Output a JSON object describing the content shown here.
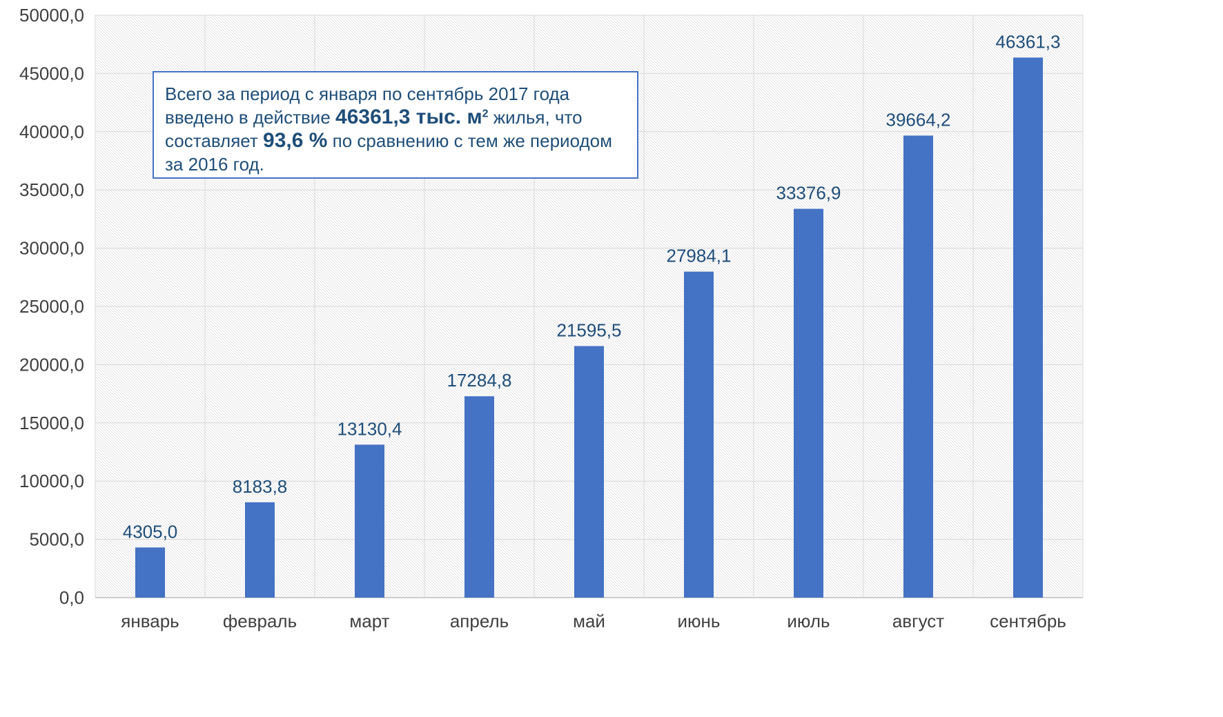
{
  "chart_data": {
    "type": "bar",
    "title": "",
    "xlabel": "",
    "ylabel": "",
    "categories": [
      "январь",
      "февраль",
      "март",
      "апрель",
      "май",
      "июнь",
      "июль",
      "август",
      "сентябрь"
    ],
    "values": [
      4305.0,
      8183.8,
      13130.4,
      17284.8,
      21595.5,
      27984.1,
      33376.9,
      39664.2,
      46361.3
    ],
    "value_labels": [
      "4305,0",
      "8183,8",
      "13130,4",
      "17284,8",
      "21595,5",
      "27984,1",
      "33376,9",
      "39664,2",
      "46361,3"
    ],
    "ylim": [
      0,
      50000
    ],
    "yticks": [
      0,
      5000,
      10000,
      15000,
      20000,
      25000,
      30000,
      35000,
      40000,
      45000,
      50000
    ],
    "ytick_labels": [
      "0,0",
      "5000,0",
      "10000,0",
      "15000,0",
      "20000,0",
      "25000,0",
      "30000,0",
      "35000,0",
      "40000,0",
      "45000,0",
      "50000,0"
    ],
    "grid": true,
    "legend": "none",
    "bar_color": "#4472C4",
    "grid_color": "#D9D9D9",
    "tick_label_color": "#404040",
    "data_label_color": "#1F4E79"
  },
  "annotation": {
    "line1": "Всего за период с января по сентябрь 2017 года",
    "line2_a": "введено в действие ",
    "line2_bold": "46361,3 тыс. м",
    "line2_sup": "2",
    "line2_b": " жилья, что",
    "line3_a": "составляет ",
    "line3_bold": "93,6 %",
    "line3_b": " по сравнению с тем же периодом",
    "line4": "за 2016 год."
  }
}
